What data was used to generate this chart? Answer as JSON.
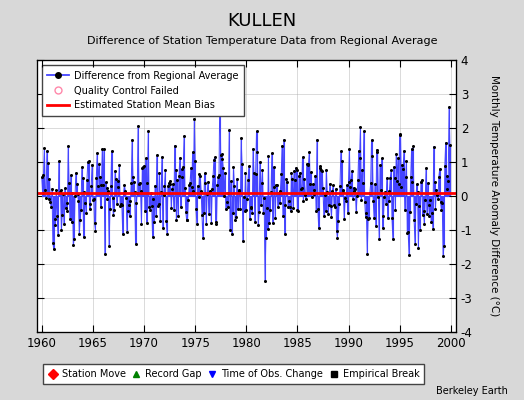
{
  "title": "KULLEN",
  "subtitle": "Difference of Station Temperature Data from Regional Average",
  "ylabel": "Monthly Temperature Anomaly Difference (°C)",
  "xlim": [
    1959.5,
    2000.5
  ],
  "ylim": [
    -4,
    4
  ],
  "yticks": [
    -4,
    -3,
    -2,
    -1,
    0,
    1,
    2,
    3,
    4
  ],
  "xticks": [
    1960,
    1965,
    1970,
    1975,
    1980,
    1985,
    1990,
    1995,
    2000
  ],
  "bias_line": 0.1,
  "background_color": "#d8d8d8",
  "plot_bg_color": "#ffffff",
  "line_color": "#4444ff",
  "line_fill_color": "#aaaaff",
  "dot_color": "#000000",
  "bias_color": "#ff0000",
  "watermark": "Berkeley Earth",
  "seed": 42
}
